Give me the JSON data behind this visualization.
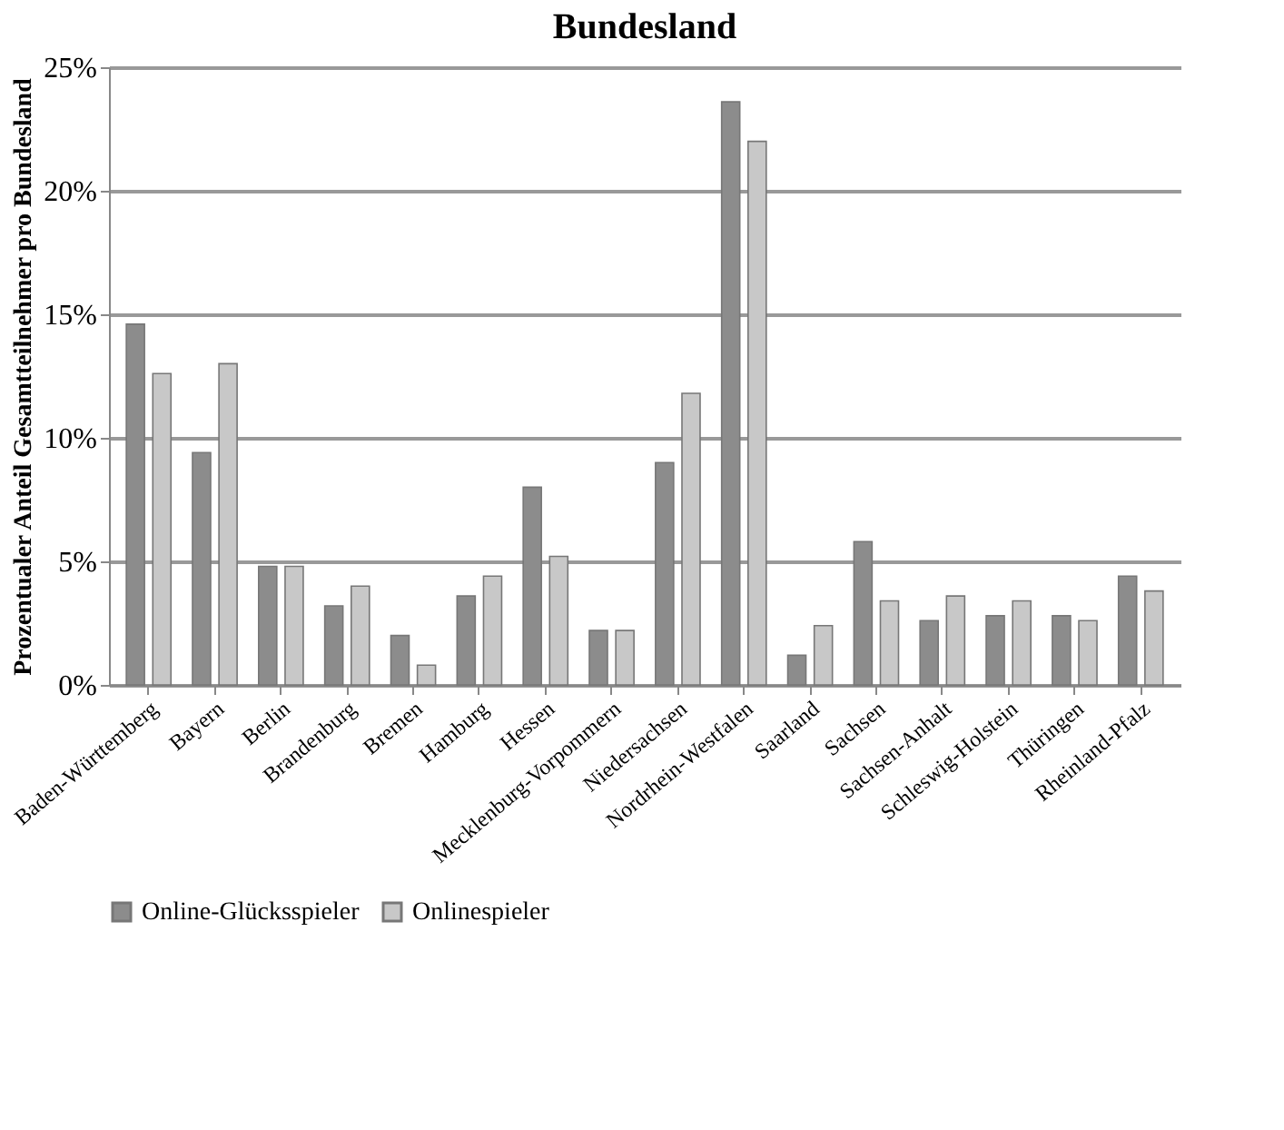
{
  "chart_data": {
    "type": "bar",
    "title": "Bundesland",
    "ylabel": "Prozentualer Anteil Gesamtteilnehmer  pro Bundesland",
    "categories": [
      "Baden-Württemberg",
      "Bayern",
      "Berlin",
      "Brandenburg",
      "Bremen",
      "Hamburg",
      "Hessen",
      "Mecklenburg-Vorpommern",
      "Niedersachsen",
      "Nordrhein-Westfalen",
      "Saarland",
      "Sachsen",
      "Sachsen-Anhalt",
      "Schleswig-Holstein",
      "Thüringen",
      "Rheinland-Pfalz"
    ],
    "series": [
      {
        "name": "Online-Glücksspieler",
        "color": "#8c8c8c",
        "values": [
          14.6,
          9.4,
          4.8,
          3.2,
          2.0,
          3.6,
          8.0,
          2.2,
          9.0,
          23.6,
          1.2,
          5.8,
          2.6,
          2.8,
          2.8,
          4.4
        ]
      },
      {
        "name": "Onlinespieler",
        "color": "#c8c8c8",
        "values": [
          12.6,
          13.0,
          4.8,
          4.0,
          0.8,
          4.4,
          5.2,
          2.2,
          11.8,
          22.0,
          2.4,
          3.4,
          3.6,
          3.4,
          2.6,
          3.8
        ]
      }
    ],
    "ylim": [
      0,
      25
    ],
    "yticks": [
      {
        "value": 0,
        "label": "0%"
      },
      {
        "value": 5,
        "label": "5%"
      },
      {
        "value": 10,
        "label": "10%"
      },
      {
        "value": 15,
        "label": "15%"
      },
      {
        "value": 20,
        "label": "20%"
      },
      {
        "value": 25,
        "label": "25%"
      }
    ],
    "grid": "y",
    "legend": "bottom"
  }
}
